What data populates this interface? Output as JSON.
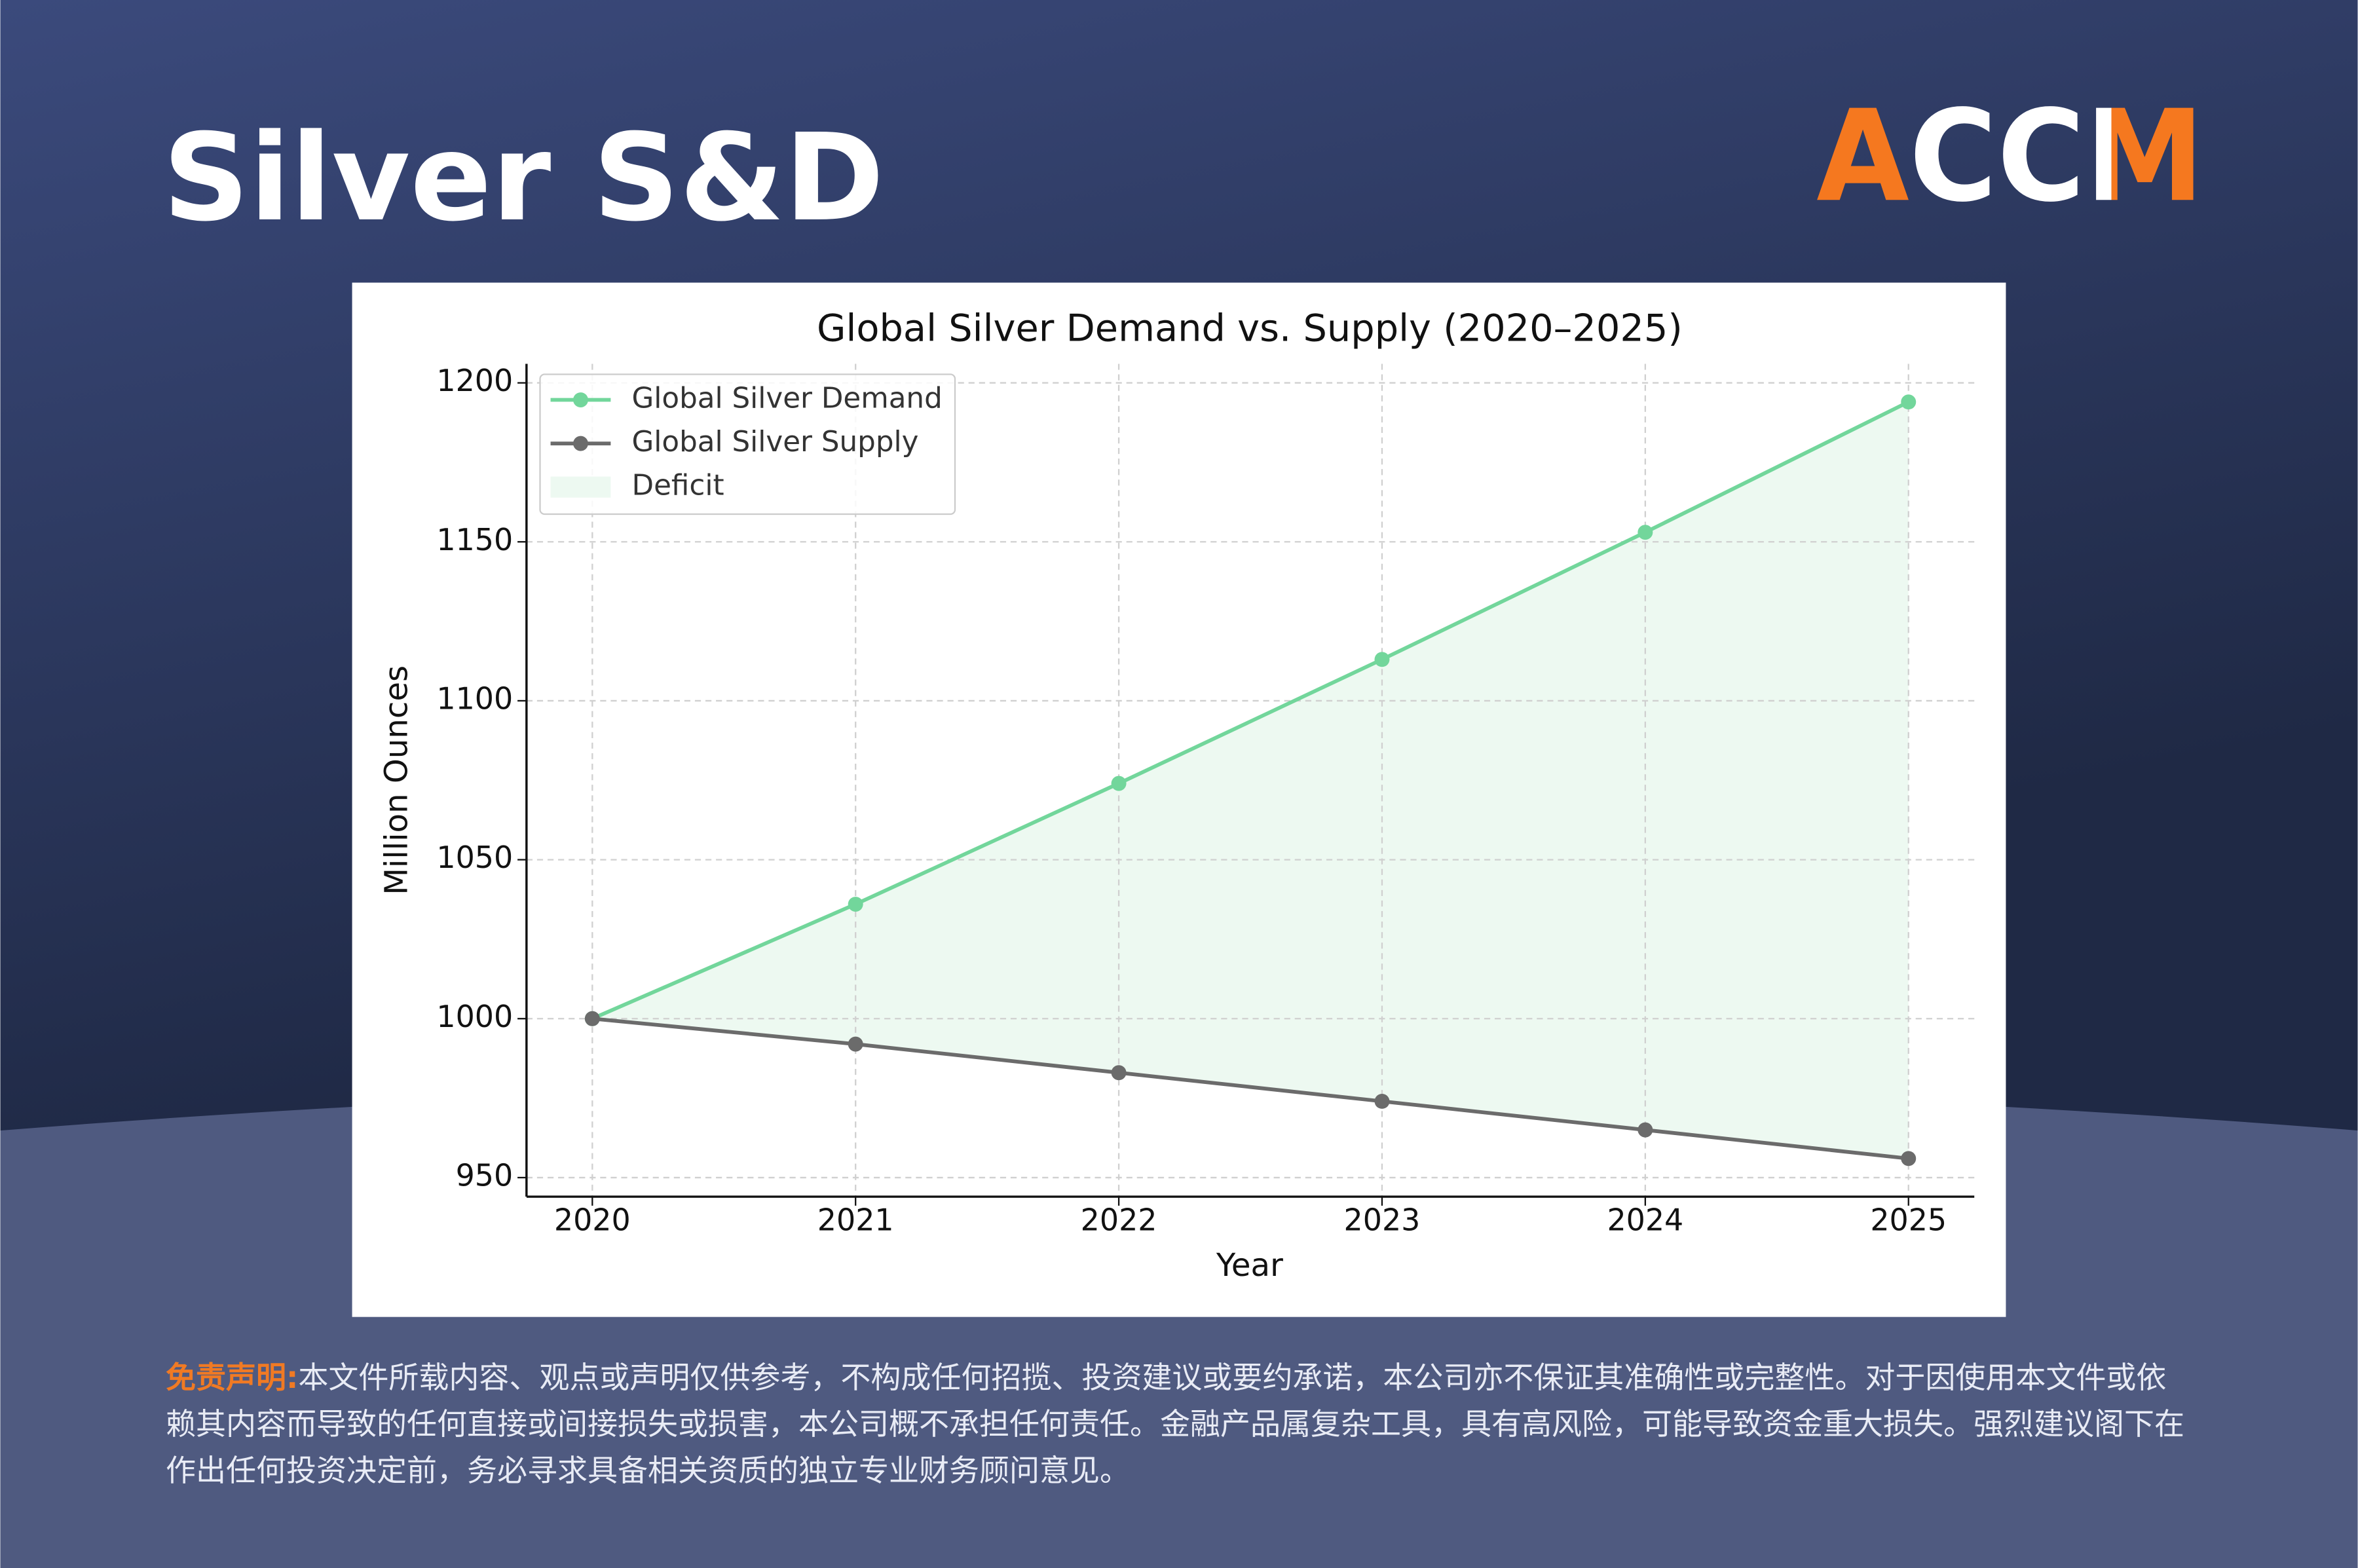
{
  "header": {
    "title": "Silver S&D",
    "logo": "ACCM"
  },
  "chart_data": {
    "type": "line",
    "title": "Global Silver Demand vs. Supply (2020–2025)",
    "x_label": "Year",
    "y_label": "Million Ounces",
    "x": [
      2020,
      2021,
      2022,
      2023,
      2024,
      2025
    ],
    "series": [
      {
        "name": "Global Silver Demand",
        "color": "#72d69b",
        "values": [
          1000,
          1036,
          1074,
          1113,
          1153,
          1194
        ]
      },
      {
        "name": "Global Silver Supply",
        "color": "#6b6b6b",
        "values": [
          1000,
          992,
          983,
          974,
          965,
          956
        ]
      }
    ],
    "fill_between": {
      "name": "Deficit",
      "color": "#edf9f1"
    },
    "xlim": [
      2019.75,
      2025.25
    ],
    "xticks": [
      2020,
      2021,
      2022,
      2023,
      2024,
      2025
    ],
    "ylim": [
      944,
      1206
    ],
    "yticks": [
      950,
      1000,
      1050,
      1100,
      1150,
      1200
    ],
    "grid": true,
    "legend": "upper-left"
  },
  "disclaimer": {
    "label": "免责声明:",
    "text": "本文件所载内容、观点或声明仅供参考，不构成任何招揽、投资建议或要约承诺，本公司亦不保证其准确性或完整性。对于因使用本文件或依赖其内容而导致的任何直接或间接损失或损害，本公司概不承担任何责任。金融产品属复杂工具，具有高风险，可能导致资金重大损失。强烈建议阁下在作出任何投资决定前，务必寻求具备相关资质的独立专业财务顾问意见。"
  }
}
